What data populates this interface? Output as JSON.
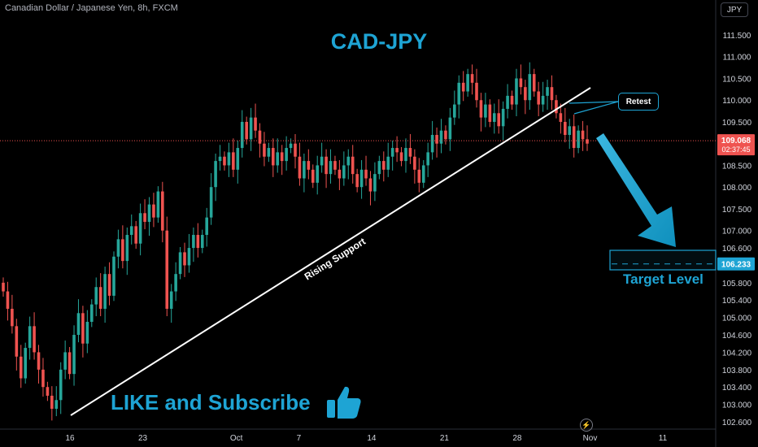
{
  "header": {
    "symbol_line": "Canadian Dollar / Japanese Yen, 8h, FXCM",
    "currency_button": "JPY"
  },
  "chart_data": {
    "type": "candlestick",
    "title": "CAD-JPY",
    "y_axis": {
      "ylim": [
        102.5,
        111.7
      ],
      "ticks": [
        "111.500",
        "111.000",
        "110.500",
        "110.000",
        "109.500",
        "109.000",
        "108.500",
        "108.000",
        "107.500",
        "107.000",
        "106.600",
        "106.200",
        "105.800",
        "105.400",
        "105.000",
        "104.600",
        "104.200",
        "103.800",
        "103.400",
        "103.000",
        "102.600"
      ],
      "tick_values": [
        111.5,
        111.0,
        110.5,
        110.0,
        109.5,
        109.0,
        108.5,
        108.0,
        107.5,
        107.0,
        106.6,
        106.2,
        105.8,
        105.4,
        105.0,
        104.6,
        104.2,
        103.8,
        103.4,
        103.0,
        102.6
      ]
    },
    "x_axis": {
      "labels": [
        {
          "text": "16",
          "index": 0
        },
        {
          "text": "23",
          "index": 21
        },
        {
          "text": "Oct",
          "index": 48
        },
        {
          "text": "7",
          "index": 66
        },
        {
          "text": "14",
          "index": 87
        },
        {
          "text": "21",
          "index": 108
        },
        {
          "text": "28",
          "index": 129
        },
        {
          "text": "Nov",
          "index": 150
        },
        {
          "text": "11",
          "index": 171
        }
      ],
      "first_index": -2,
      "last_index": 184
    },
    "closes": [
      105.6,
      105.2,
      104.8,
      104.1,
      103.6,
      104.3,
      104.8,
      104.2,
      103.8,
      103.4,
      103.2,
      102.9,
      103.1,
      103.8,
      104.2,
      103.7,
      104.6,
      105.1,
      104.4,
      104.9,
      105.3,
      105.7,
      105.2,
      106.0,
      105.5,
      106.4,
      106.8,
      106.3,
      106.9,
      107.1,
      106.7,
      107.4,
      107.2,
      107.6,
      107.3,
      107.9,
      107.0,
      105.2,
      105.6,
      106.0,
      106.5,
      106.2,
      106.6,
      106.9,
      106.6,
      106.9,
      107.3,
      108.0,
      108.6,
      108.7,
      108.5,
      108.8,
      108.4,
      108.9,
      109.5,
      109.1,
      109.6,
      109.3,
      109.0,
      108.7,
      108.9,
      108.5,
      108.8,
      108.6,
      108.9,
      109.0,
      108.7,
      108.2,
      108.6,
      108.4,
      108.1,
      108.5,
      108.7,
      108.3,
      108.6,
      108.4,
      108.2,
      108.5,
      108.7,
      108.3,
      108.0,
      108.4,
      108.2,
      107.9,
      108.3,
      108.6,
      108.4,
      108.7,
      108.9,
      108.8,
      108.6,
      108.9,
      108.7,
      108.4,
      108.1,
      108.5,
      108.8,
      109.2,
      109.0,
      109.3,
      109.1,
      109.6,
      109.9,
      110.4,
      110.2,
      110.6,
      110.4,
      110.0,
      109.6,
      109.9,
      109.5,
      109.7,
      109.4,
      109.8,
      110.1,
      109.9,
      110.5,
      110.3,
      110.0,
      110.6,
      110.2,
      109.9,
      110.1,
      110.3,
      110.0,
      109.7,
      109.5,
      109.2,
      109.4,
      108.9,
      109.3,
      109.1,
      109.0
    ],
    "last_price": "109.068",
    "countdown": "02:37:45",
    "annotations": {
      "trendline_label": "Rising Support",
      "retest_label": "Retest",
      "target_label": "Target Level",
      "target_price": "106.233",
      "target_value": 106.233
    },
    "grid": false
  },
  "footer": {
    "cta": "LIKE and Subscribe"
  },
  "colors": {
    "up": "#26a69a",
    "down": "#ef5350",
    "accent": "#1ea4d4",
    "axis_text": "#d1d4dc",
    "price_line": "#ef5350"
  },
  "icons": {
    "thumb": "thumbs-up-icon",
    "bolt": "lightning-icon"
  }
}
